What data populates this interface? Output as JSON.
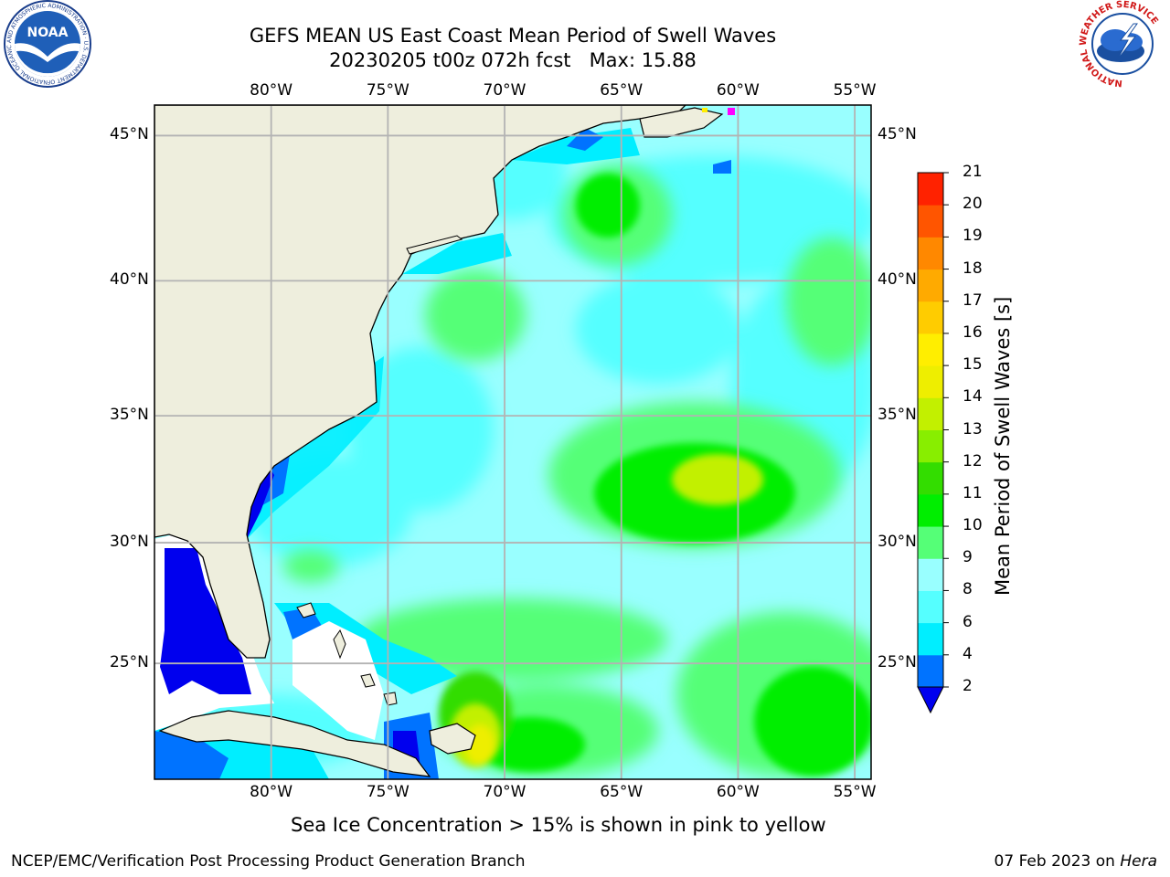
{
  "header": {
    "title_line1": "GEFS MEAN US East Coast Mean Period of Swell Waves",
    "title_line2": "20230205 t00z 072h fcst   Max: 15.88"
  },
  "logos": {
    "noaa_text": "NOAA",
    "noaa_ring": "NATIONAL OCEANIC AND ATMOSPHERIC ADMINISTRATION · U.S. DEPARTMENT OF COMMERCE",
    "nws_ring": "NATIONAL WEATHER SERVICE"
  },
  "map": {
    "lon_labels": [
      "80°W",
      "75°W",
      "70°W",
      "65°W",
      "60°W",
      "55°W"
    ],
    "lat_labels": [
      "45°N",
      "40°N",
      "35°N",
      "30°N",
      "25°N"
    ],
    "extent": {
      "lon_min": -85,
      "lon_max": -54.3,
      "lat_min": 20,
      "lat_max": 46
    },
    "colors": {
      "land": "#eeeedd",
      "coast": "#000000",
      "grid": "#b3b3b3"
    }
  },
  "colorbar": {
    "label": "Mean Period of Swell Waves [s]",
    "ticks": [
      "2",
      "4",
      "6",
      "8",
      "9",
      "10",
      "11",
      "12",
      "13",
      "14",
      "15",
      "16",
      "17",
      "18",
      "19",
      "20",
      "21"
    ],
    "colors": [
      "#0000ee",
      "#0073ff",
      "#00eeff",
      "#55ffff",
      "#99ffff",
      "#55ff77",
      "#00ee00",
      "#33dd00",
      "#88ee00",
      "#c2f000",
      "#eeee00",
      "#ffee00",
      "#ffcc00",
      "#ffaa00",
      "#ff8800",
      "#ff5500",
      "#ff2200",
      "#ff0000"
    ]
  },
  "caption": "Sea Ice Concentration > 15% is shown in pink to yellow",
  "footer": {
    "left": "NCEP/EMC/Verification Post Processing Product Generation Branch",
    "right_date": "07 Feb 2023 on ",
    "right_host": "Hera"
  }
}
